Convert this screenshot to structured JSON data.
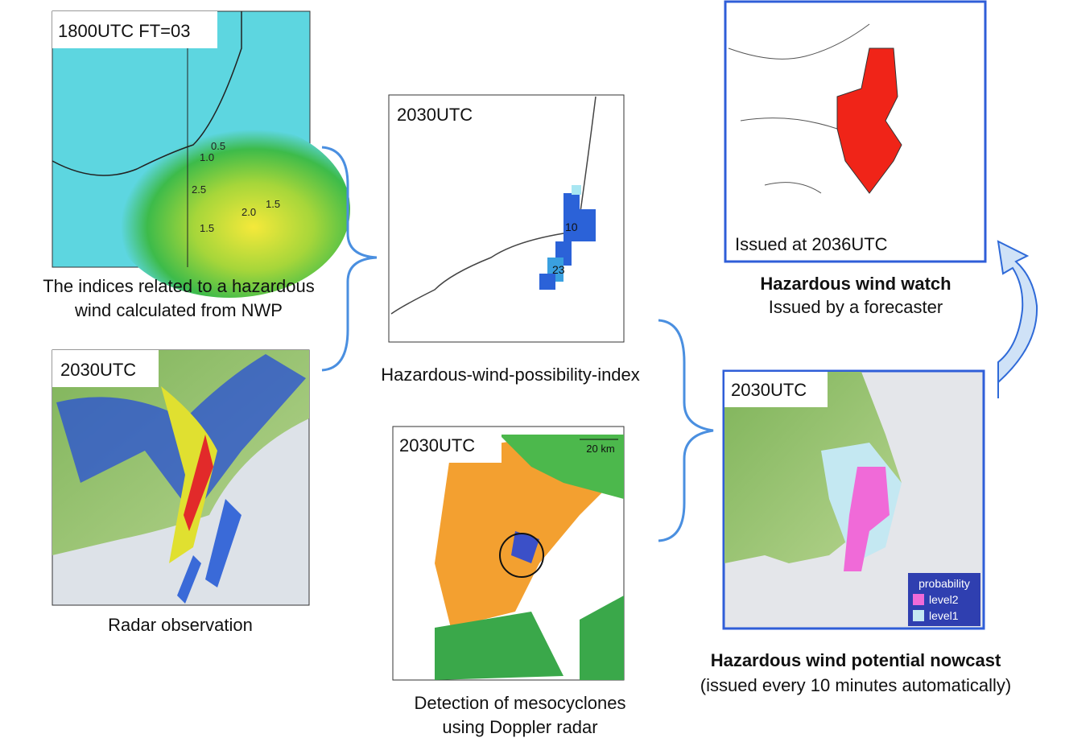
{
  "nwp": {
    "stamp": "1800UTC FT=03",
    "caption": [
      "The indices related to a hazardous",
      "wind calculated from NWP"
    ],
    "contour_labels": [
      "0.5",
      "1.0",
      "2.5",
      "2.0",
      "1.5",
      "1.5"
    ]
  },
  "radar": {
    "stamp": "2030UTC",
    "caption": [
      "Radar observation"
    ]
  },
  "index": {
    "stamp": "2030UTC",
    "caption": [
      "Hazardous-wind-possibility-index"
    ],
    "cell_labels": [
      "10",
      "23"
    ]
  },
  "doppler": {
    "stamp": "2030UTC",
    "scale": "20 km",
    "caption": [
      "Detection of mesocyclones",
      "using Doppler radar"
    ]
  },
  "watch": {
    "stamp": "Issued at 2036UTC",
    "caption": [
      "Hazardous wind watch",
      "Issued by a forecaster"
    ]
  },
  "nowcast": {
    "stamp": "2030UTC",
    "legend": {
      "title": "probability",
      "items": [
        "level2",
        "level1"
      ]
    },
    "caption": [
      "Hazardous wind potential nowcast",
      "(issued every 10 minutes automatically)"
    ]
  }
}
